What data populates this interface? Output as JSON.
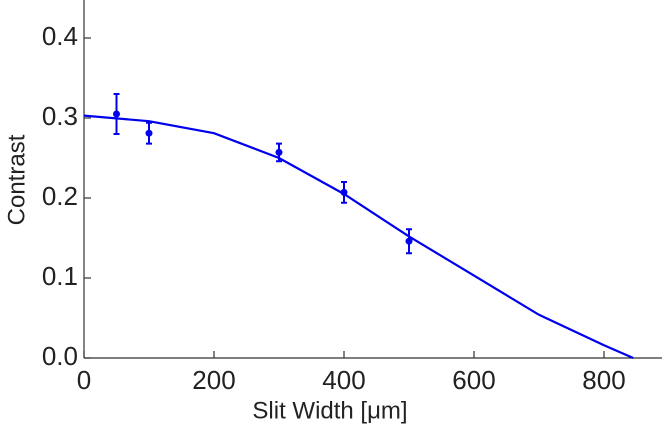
{
  "chart_data": {
    "type": "scatter",
    "xlabel": "Slit Width [μm]",
    "ylabel": "Contrast",
    "xlim": [
      0,
      886
    ],
    "ylim": [
      0,
      0.45
    ],
    "xticks": [
      0,
      200,
      400,
      600,
      800
    ],
    "yticks": [
      {
        "value": 0,
        "label": "0.0"
      },
      0.1,
      0.2,
      0.3,
      0.4
    ],
    "points": {
      "color": "#0000ee",
      "x": [
        50,
        100,
        300,
        400,
        500
      ],
      "values": [
        0.305,
        0.281,
        0.257,
        0.207,
        0.146
      ],
      "errors": [
        0.025,
        0.013,
        0.011,
        0.013,
        0.015
      ]
    },
    "fit": {
      "color": "#0000ee",
      "x": [
        0,
        100,
        200,
        300,
        400,
        500,
        600,
        700,
        800,
        845
      ],
      "values": [
        0.303,
        0.296,
        0.281,
        0.25,
        0.205,
        0.152,
        0.103,
        0.054,
        0.016,
        0
      ]
    }
  }
}
